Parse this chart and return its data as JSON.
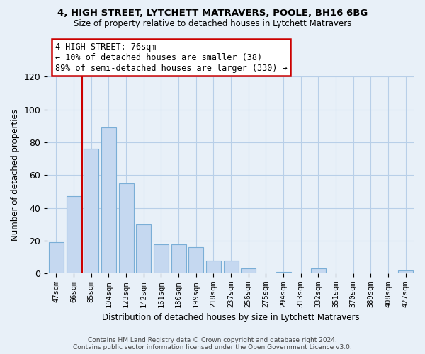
{
  "title1": "4, HIGH STREET, LYTCHETT MATRAVERS, POOLE, BH16 6BG",
  "title2": "Size of property relative to detached houses in Lytchett Matravers",
  "xlabel": "Distribution of detached houses by size in Lytchett Matravers",
  "ylabel": "Number of detached properties",
  "footer1": "Contains HM Land Registry data © Crown copyright and database right 2024.",
  "footer2": "Contains public sector information licensed under the Open Government Licence v3.0.",
  "bar_labels": [
    "47sqm",
    "66sqm",
    "85sqm",
    "104sqm",
    "123sqm",
    "142sqm",
    "161sqm",
    "180sqm",
    "199sqm",
    "218sqm",
    "237sqm",
    "256sqm",
    "275sqm",
    "294sqm",
    "313sqm",
    "332sqm",
    "351sqm",
    "370sqm",
    "389sqm",
    "408sqm",
    "427sqm"
  ],
  "bar_values": [
    19,
    47,
    76,
    89,
    55,
    30,
    18,
    18,
    16,
    8,
    8,
    3,
    0,
    1,
    0,
    3,
    0,
    0,
    0,
    0,
    2
  ],
  "bar_color": "#c5d8f0",
  "bar_edge_color": "#7aaed6",
  "grid_color": "#b8cfe8",
  "annotation_title": "4 HIGH STREET: 76sqm",
  "annotation_line1": "← 10% of detached houses are smaller (38)",
  "annotation_line2": "89% of semi-detached houses are larger (330) →",
  "annotation_box_color": "#ffffff",
  "annotation_border_color": "#cc0000",
  "red_line_color": "#cc0000",
  "ylim": [
    0,
    120
  ],
  "yticks": [
    0,
    20,
    40,
    60,
    80,
    100,
    120
  ],
  "bg_color": "#e8f0f8"
}
